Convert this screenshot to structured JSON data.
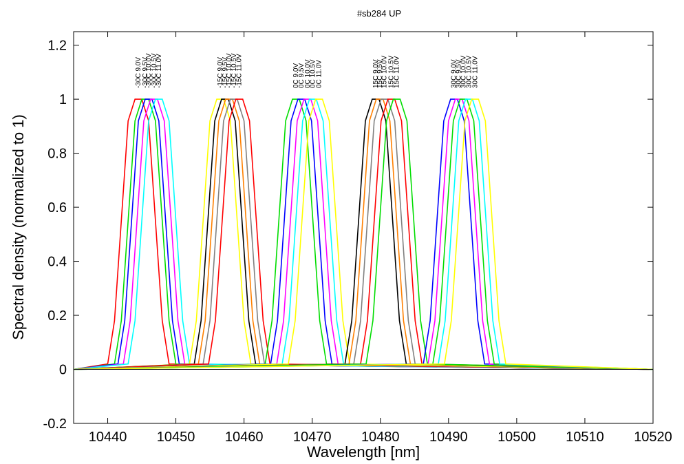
{
  "chart_data": {
    "type": "line",
    "title": "#sb284 UP",
    "xlabel": "Wavelength [nm]",
    "ylabel": "Spectral density (normalized to 1)",
    "xlim": [
      10435,
      10520
    ],
    "ylim": [
      -0.2,
      1.25
    ],
    "xticks": [
      10440,
      10450,
      10460,
      10470,
      10480,
      10490,
      10500,
      10510,
      10520
    ],
    "yticks": [
      -0.2,
      0,
      0.2,
      0.4,
      0.6,
      0.8,
      1,
      1.2
    ],
    "xtick_labels": [
      "10440",
      "10450",
      "10460",
      "10470",
      "10480",
      "10490",
      "10500",
      "10510",
      "10520"
    ],
    "ytick_labels": [
      "-0.2",
      "0",
      "0.2",
      "0.4",
      "0.6",
      "0.8",
      "1",
      "1.2"
    ],
    "grid": false,
    "profile": {
      "offsets": [
        -4.5,
        -3.5,
        -2.5,
        -1.5,
        -0.5,
        0.5,
        1.5,
        2.5,
        3.5,
        4.5
      ],
      "values": [
        0.02,
        0.18,
        0.55,
        0.92,
        1.0,
        1.0,
        0.92,
        0.55,
        0.18,
        0.02
      ],
      "baseline_x_range": [
        10435,
        10520
      ]
    },
    "series": [
      {
        "group": "-30C",
        "label": "-30C 9.0V",
        "center": 10444.5,
        "color": "#ff0000"
      },
      {
        "group": "-30C",
        "label": "-30C 9.5V",
        "center": 10445.5,
        "color": "#00dd00"
      },
      {
        "group": "-30C",
        "label": "-30C 10.0V",
        "center": 10446.0,
        "color": "#0000ff"
      },
      {
        "group": "-30C",
        "label": "-30C 10.5V",
        "center": 10446.8,
        "color": "#ff00ff"
      },
      {
        "group": "-30C",
        "label": "-30C 11.0V",
        "center": 10447.5,
        "color": "#00ffff"
      },
      {
        "group": "-15C",
        "label": "-15C 9.0V",
        "center": 10456.5,
        "color": "#ffff00"
      },
      {
        "group": "-15C",
        "label": "-15C 9.5V",
        "center": 10457.2,
        "color": "#000000"
      },
      {
        "group": "-15C",
        "label": "-15C 10.0V",
        "center": 10457.8,
        "color": "#ff8000"
      },
      {
        "group": "-15C",
        "label": "-15C 10.5V",
        "center": 10458.5,
        "color": "#808080"
      },
      {
        "group": "-15C",
        "label": "-15C 11.0V",
        "center": 10459.3,
        "color": "#ff0000"
      },
      {
        "group": "0C",
        "label": "0C 9.0V",
        "center": 10467.6,
        "color": "#00dd00"
      },
      {
        "group": "0C",
        "label": "0C 9.5V",
        "center": 10468.4,
        "color": "#0000ff"
      },
      {
        "group": "0C",
        "label": "0C 10.0V",
        "center": 10469.3,
        "color": "#ff00ff"
      },
      {
        "group": "0C",
        "label": "0C 10.5V",
        "center": 10470.1,
        "color": "#00ffff"
      },
      {
        "group": "0C",
        "label": "0C 11.0V",
        "center": 10471.0,
        "color": "#ffff00"
      },
      {
        "group": "15C",
        "label": "15C 9.0V",
        "center": 10479.3,
        "color": "#000000"
      },
      {
        "group": "15C",
        "label": "15C 9.5V",
        "center": 10479.9,
        "color": "#ff8000"
      },
      {
        "group": "15C",
        "label": "15C 10.0V",
        "center": 10480.6,
        "color": "#808080"
      },
      {
        "group": "15C",
        "label": "15C 10.5V",
        "center": 10481.6,
        "color": "#ff0000"
      },
      {
        "group": "15C",
        "label": "15C 11.0V",
        "center": 10482.4,
        "color": "#00dd00"
      },
      {
        "group": "30C",
        "label": "30C 9.0V",
        "center": 10490.8,
        "color": "#0000ff"
      },
      {
        "group": "30C",
        "label": "30C 9.5V",
        "center": 10491.5,
        "color": "#ff00ff"
      },
      {
        "group": "30C",
        "label": "30C 10.0V",
        "center": 10492.2,
        "color": "#00dd00"
      },
      {
        "group": "30C",
        "label": "30C 10.5V",
        "center": 10493.0,
        "color": "#00ffff"
      },
      {
        "group": "30C",
        "label": "30C 11.0V",
        "center": 10493.9,
        "color": "#ffff00"
      }
    ]
  }
}
